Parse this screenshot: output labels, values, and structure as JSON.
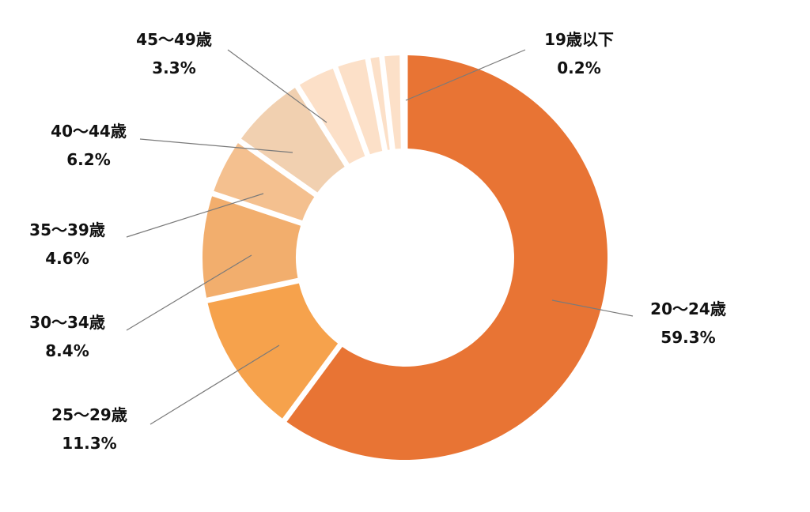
{
  "chart_data": {
    "type": "pie",
    "style": "donut",
    "title": "",
    "start": "12 o'clock",
    "direction": "clockwise",
    "slices": [
      {
        "label": "20～24歳",
        "value": 59.3,
        "value_label": "59.3%",
        "color": "#E87434"
      },
      {
        "label": "25～29歳",
        "value": 11.3,
        "value_label": "11.3%",
        "color": "#F6A24C"
      },
      {
        "label": "30～34歳",
        "value": 8.4,
        "value_label": "8.4%",
        "color": "#F2AE6D"
      },
      {
        "label": "35～39歳",
        "value": 4.6,
        "value_label": "4.6%",
        "color": "#F4C08F"
      },
      {
        "label": "40～44歳",
        "value": 6.2,
        "value_label": "6.2%",
        "color": "#F1D0B0"
      },
      {
        "label": "45～49歳",
        "value": 3.3,
        "value_label": "3.3%",
        "color": "#FCE0C8"
      },
      {
        "label": "",
        "value": 2.6,
        "value_label": "",
        "color": "#FCE0C8"
      },
      {
        "label": "",
        "value": 1.1,
        "value_label": "",
        "color": "#FCE0C8"
      },
      {
        "label": "",
        "value": 1.6,
        "value_label": "",
        "color": "#FCE0C8"
      },
      {
        "label": "19歳以下",
        "value": 0.2,
        "value_label": "0.2%",
        "color": "#FCE0C8"
      }
    ]
  }
}
